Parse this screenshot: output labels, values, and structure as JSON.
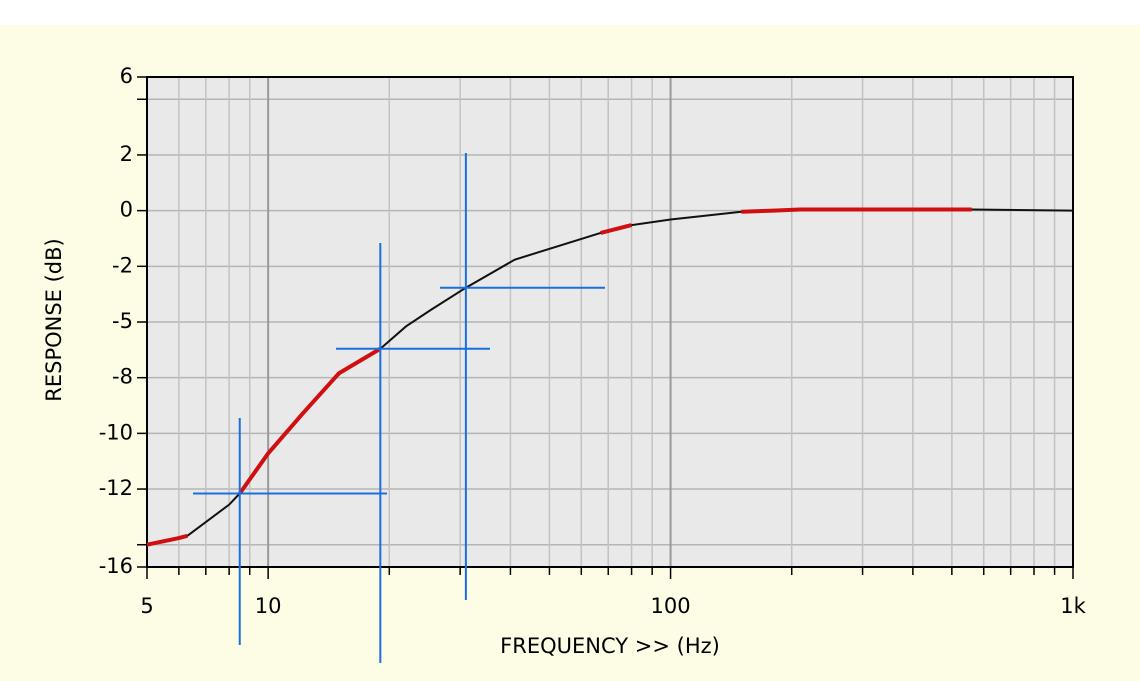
{
  "chart_data": {
    "type": "line",
    "xlabel": "FREQUENCY >> (Hz)",
    "ylabel": "RESPONSE (dB)",
    "xscale": "log",
    "grid": true,
    "xlim": [
      5,
      1000
    ],
    "ylim": [
      -16,
      6
    ],
    "xticks": [
      5,
      10,
      100,
      {
        "value": 1000,
        "label": "1k"
      }
    ],
    "xminor": [
      6,
      7,
      8,
      9,
      20,
      30,
      40,
      50,
      60,
      70,
      80,
      90,
      200,
      300,
      400,
      500,
      600,
      700,
      800,
      900
    ],
    "yticks": [
      6,
      {
        "value": 5,
        "label": null
      },
      {
        "value": 2.5,
        "label": "2"
      },
      0,
      {
        "value": -2.5,
        "label": "-2"
      },
      -5,
      {
        "value": -7.5,
        "label": "-8"
      },
      -10,
      {
        "value": -12.5,
        "label": "-12"
      },
      {
        "value": -15,
        "label": null
      },
      -16
    ],
    "x": [
      5,
      6,
      6.3,
      8,
      8.5,
      10,
      12.2,
      15,
      19,
      22,
      25.4,
      31,
      41,
      67,
      80,
      100,
      150,
      180,
      210,
      560,
      1000
    ],
    "series": [
      {
        "color": "#111111",
        "values": [
          -15,
          -14.7,
          -14.6,
          -13.2,
          -12.7,
          -10.9,
          -9.1,
          -7.3,
          -6.2,
          -5.2,
          -4.45,
          -3.46,
          -2.2,
          -1.0,
          -0.65,
          -0.4,
          -0.05,
          0,
          0.05,
          0.05,
          0
        ]
      },
      {
        "color": "#d01010",
        "values": [
          -15,
          -14.7,
          -14.6,
          null,
          -12.7,
          -10.9,
          -9.1,
          -7.3,
          -6.2,
          null,
          null,
          null,
          null,
          -1.0,
          -0.65,
          null,
          -0.05,
          0,
          0.05,
          0.05,
          null
        ]
      }
    ],
    "markers": [
      {
        "x": 8.5,
        "y": -12.7,
        "color": "#1a6fe0"
      },
      {
        "x": 19,
        "y": -6.2,
        "color": "#1a6fe0"
      },
      {
        "x": 31,
        "y": -3.46,
        "color": "#1a6fe0"
      }
    ]
  }
}
